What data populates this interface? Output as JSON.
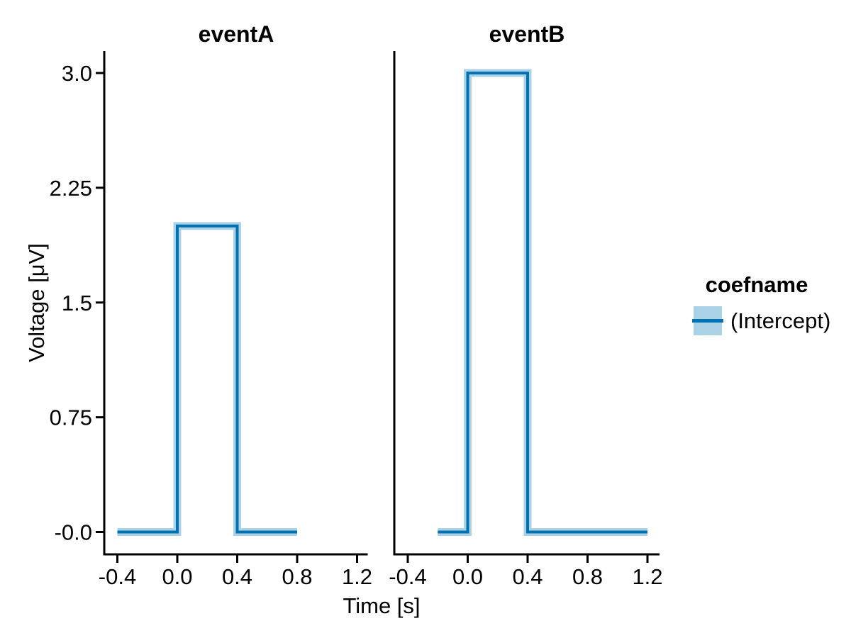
{
  "chart_data": {
    "type": "line",
    "style": "step-line-with-confidence-band",
    "xlabel": "Time [s]",
    "ylabel": "Voltage [μV]",
    "x_ticks": {
      "values": [
        -0.4,
        0.0,
        0.4,
        0.8,
        1.2
      ],
      "labels": [
        "-0.4",
        "0.0",
        "0.4",
        "0.8",
        "1.2"
      ]
    },
    "y_ticks": {
      "values": [
        3.0,
        2.25,
        1.5,
        0.75,
        0.0
      ],
      "labels": [
        "3.0",
        "2.25",
        "1.5",
        "0.75",
        "-0.0"
      ]
    },
    "xlim": [
      -0.49,
      1.27
    ],
    "ylim": [
      -0.15,
      3.15
    ],
    "grid": false,
    "legend_position": "right",
    "facets": [
      {
        "title": "eventA",
        "series": [
          {
            "name": "(Intercept)",
            "x": [
              -0.4,
              0.0,
              0.0,
              0.4,
              0.4,
              0.8
            ],
            "y": [
              0,
              0,
              2.0,
              2.0,
              0,
              0
            ],
            "description": "boxcar: 0 μV from -0.4 to 0 s, 2.0 μV from 0 to 0.4 s, 0 μV from 0.4 to 0.8 s"
          }
        ]
      },
      {
        "title": "eventB",
        "series": [
          {
            "name": "(Intercept)",
            "x": [
              -0.2,
              0.0,
              0.0,
              0.4,
              0.4,
              1.2
            ],
            "y": [
              0,
              0,
              3.0,
              3.0,
              0,
              0
            ],
            "description": "boxcar: 0 μV from -0.2 to 0 s, 3.0 μV from 0 to 0.4 s, 0 μV from 0.4 to 1.2 s"
          }
        ]
      }
    ],
    "legend": {
      "title": "coefname",
      "entries": [
        {
          "label": "(Intercept)",
          "line_color": "#0072B2",
          "band_color": "rgba(0,114,178,0.33)"
        }
      ]
    },
    "colors": {
      "line": "#0072B2",
      "band": "rgba(0,114,178,0.33)",
      "axis": "#000000",
      "background": "#ffffff"
    },
    "band_halfwidth_uv": 0.016
  }
}
